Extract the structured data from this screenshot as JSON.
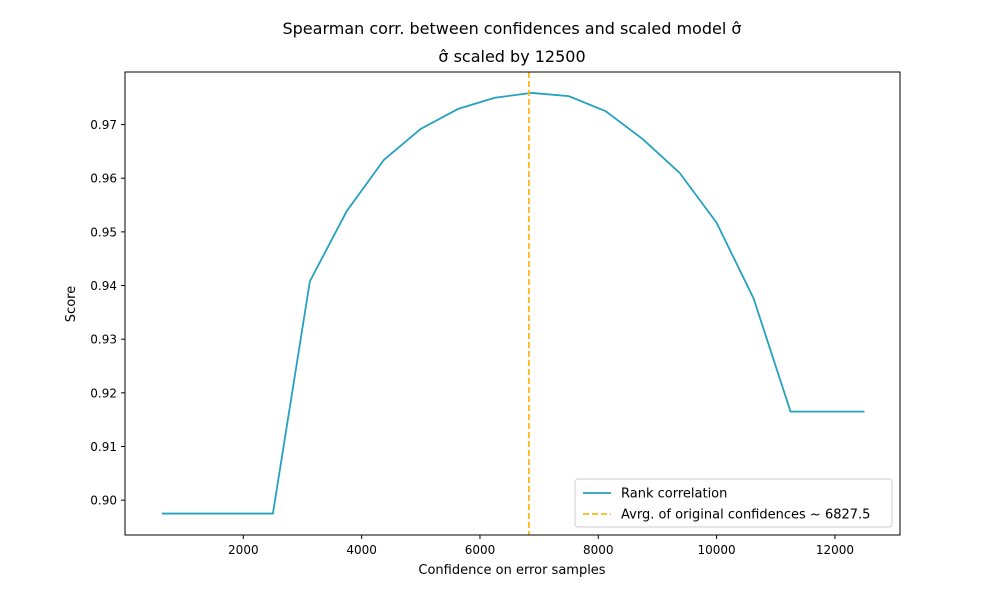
{
  "chart_data": {
    "type": "line",
    "title": "Spearman corr. between confidences and scaled model σ̂",
    "subtitle": "σ̂ scaled by 12500",
    "xlabel": "Confidence on error samples",
    "ylabel": "Score",
    "xlim": [
      0,
      13100
    ],
    "ylim": [
      0.8935,
      0.9798
    ],
    "xticks": [
      2000,
      4000,
      6000,
      8000,
      10000,
      12000
    ],
    "xtick_labels": [
      "2000",
      "4000",
      "6000",
      "8000",
      "10000",
      "12000"
    ],
    "yticks": [
      0.9,
      0.91,
      0.92,
      0.93,
      0.94,
      0.95,
      0.96,
      0.97
    ],
    "ytick_labels": [
      "0.90",
      "0.91",
      "0.92",
      "0.93",
      "0.94",
      "0.95",
      "0.96",
      "0.97"
    ],
    "grid": false,
    "legend_position": "lower-right",
    "series": [
      {
        "name": "Rank correlation",
        "color": "#24a1bf",
        "style": "solid",
        "x": [
          625,
          1250,
          1875,
          2500,
          3125,
          3750,
          4375,
          5000,
          5625,
          6250,
          6875,
          7500,
          8125,
          8750,
          9375,
          10000,
          10625,
          11250,
          11875,
          12500
        ],
        "y": [
          0.8975,
          0.8975,
          0.8975,
          0.8975,
          0.9408,
          0.9539,
          0.9634,
          0.9692,
          0.9729,
          0.975,
          0.9759,
          0.9753,
          0.9725,
          0.9673,
          0.961,
          0.9517,
          0.9376,
          0.9165,
          0.9165,
          0.9165
        ]
      }
    ],
    "reference_lines": [
      {
        "name": "Avrg. of original confidences ~ 6827.5",
        "orientation": "vertical",
        "x": 6827.5,
        "color": "#ffb71c",
        "style": "dashed"
      }
    ]
  }
}
